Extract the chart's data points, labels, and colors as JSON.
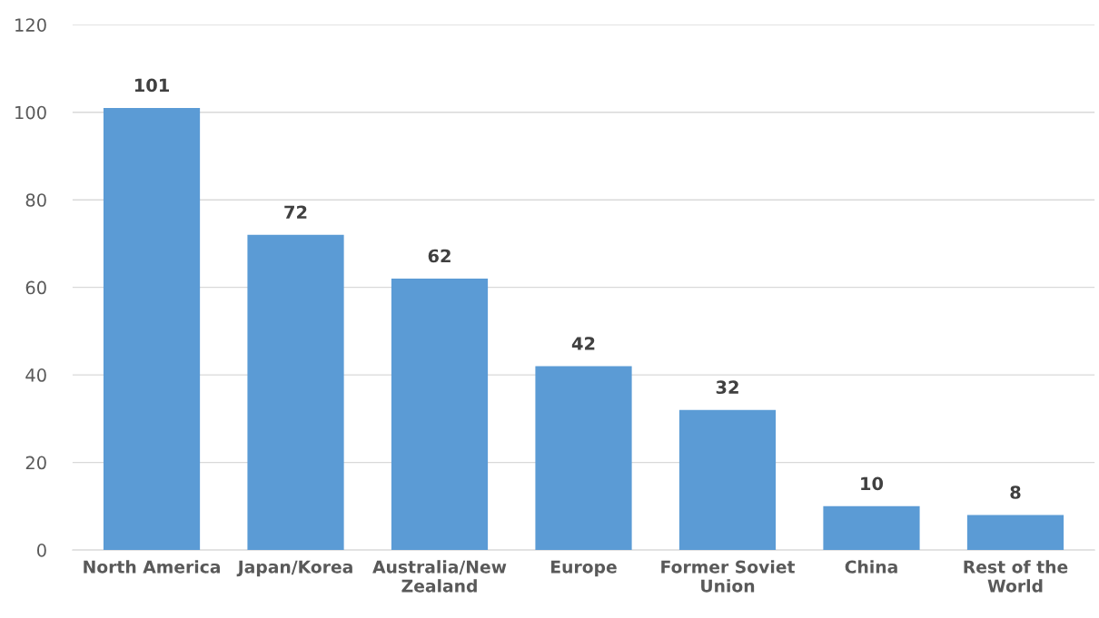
{
  "chart_data": {
    "type": "bar",
    "categories": [
      "North America",
      "Japan/Korea",
      "Australia/New\nZealand",
      "Europe",
      "Former Soviet\nUnion",
      "China",
      "Rest of the\nWorld"
    ],
    "values": [
      101,
      72,
      62,
      42,
      32,
      10,
      8
    ],
    "color": "#5b9bd5",
    "ylim": [
      0,
      120
    ],
    "yticks": [
      0,
      20,
      40,
      60,
      80,
      100,
      120
    ],
    "grid": "y",
    "data_labels": true
  }
}
